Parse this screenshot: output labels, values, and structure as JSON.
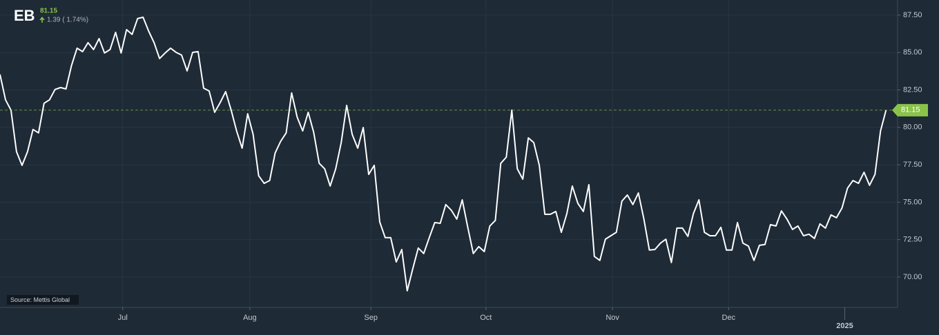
{
  "header": {
    "symbol": "EB",
    "price": "81.15",
    "change": "1.39 ( 1.74%)",
    "source": "Source: Mettis Global"
  },
  "chart_data": {
    "type": "line",
    "x": [
      0,
      1,
      2,
      3,
      4,
      5,
      6,
      7,
      8,
      9,
      10,
      11,
      12,
      13,
      14,
      15,
      16,
      17,
      18,
      19,
      20,
      21,
      22,
      23,
      24,
      25,
      26,
      27,
      28,
      29,
      30,
      31,
      32,
      33,
      34,
      35,
      36,
      37,
      38,
      39,
      40,
      41,
      42,
      43,
      44,
      45,
      46,
      47,
      48,
      49,
      50,
      51,
      52,
      53,
      54,
      55,
      56,
      57,
      58,
      59,
      60,
      61,
      62,
      63,
      64,
      65,
      66,
      67,
      68,
      69,
      70,
      71,
      72,
      73,
      74,
      75,
      76,
      77,
      78,
      79,
      80,
      81,
      82,
      83,
      84,
      85,
      86,
      87,
      88,
      89,
      90,
      91,
      92,
      93,
      94,
      95,
      96,
      97,
      98,
      99,
      100,
      101,
      102,
      103,
      104,
      105,
      106,
      107,
      108,
      109,
      110,
      111,
      112,
      113,
      114,
      115,
      116,
      117,
      118,
      119,
      120,
      121,
      122,
      123,
      124,
      125,
      126,
      127,
      128,
      129,
      130,
      131,
      132,
      133,
      134,
      135,
      136,
      137,
      138,
      139,
      140,
      141,
      142,
      143,
      144,
      145,
      146,
      147,
      148,
      149,
      150,
      151,
      152,
      153,
      154,
      155,
      156,
      157,
      158,
      159,
      160,
      161
    ],
    "series": [
      {
        "name": "EB",
        "color": "#ffffff",
        "values": [
          83.54,
          81.84,
          81.15,
          78.38,
          77.46,
          78.38,
          79.86,
          79.63,
          81.61,
          81.84,
          82.53,
          82.66,
          82.57,
          84.14,
          85.29,
          85.06,
          85.66,
          85.2,
          85.93,
          84.97,
          85.2,
          86.35,
          84.97,
          86.53,
          86.21,
          87.27,
          87.36,
          86.44,
          85.66,
          84.6,
          84.97,
          85.29,
          85.01,
          84.83,
          83.77,
          85.01,
          85.06,
          82.62,
          82.43,
          81.01,
          81.65,
          82.39,
          81.15,
          79.76,
          78.61,
          80.91,
          79.53,
          76.77,
          76.26,
          76.45,
          78.29,
          79.07,
          79.63,
          82.3,
          80.68,
          79.76,
          81.01,
          79.67,
          77.6,
          77.23,
          76.08,
          77.23,
          78.98,
          81.47,
          79.53,
          78.61,
          79.99,
          76.86,
          77.46,
          73.68,
          72.63,
          72.63,
          71.01,
          71.84,
          69.08,
          70.55,
          71.94,
          71.57,
          72.63,
          73.64,
          73.59,
          74.84,
          74.47,
          73.87,
          75.16,
          73.32,
          71.57,
          72.03,
          71.7,
          73.41,
          73.78,
          77.6,
          78.01,
          81.15,
          77.23,
          76.54,
          79.3,
          78.98,
          77.46,
          74.19,
          74.19,
          74.38,
          72.99,
          74.24,
          76.08,
          74.93,
          74.38,
          76.17,
          71.38,
          71.11,
          72.53,
          72.76,
          72.99,
          75.07,
          75.48,
          74.84,
          75.62,
          73.87,
          71.8,
          71.84,
          72.26,
          72.53,
          70.97,
          73.27,
          73.27,
          72.72,
          74.24,
          75.16,
          72.99,
          72.76,
          72.76,
          73.32,
          71.8,
          71.8,
          73.64,
          72.26,
          72.07,
          71.11,
          72.12,
          72.17,
          73.5,
          73.41,
          74.42,
          73.87,
          73.18,
          73.41,
          72.76,
          72.86,
          72.58,
          73.55,
          73.27,
          74.15,
          73.96,
          74.61,
          75.94,
          76.45,
          76.26,
          77.0,
          76.13,
          76.86,
          79.76,
          81.15
        ]
      }
    ],
    "xlim": [
      0,
      163.1
    ],
    "xticks": [
      {
        "value": 22.3,
        "label": "Jul"
      },
      {
        "value": 45.4,
        "label": "Aug"
      },
      {
        "value": 67.4,
        "label": "Sep"
      },
      {
        "value": 88.3,
        "label": "Oct"
      },
      {
        "value": 111.3,
        "label": "Nov"
      },
      {
        "value": 132.4,
        "label": "Dec"
      }
    ],
    "year_ticks": [
      {
        "value": 153.5,
        "label": "2025"
      }
    ],
    "ylim": [
      67.97,
      88.51
    ],
    "yticks": [
      {
        "value": 70,
        "label": "70.00"
      },
      {
        "value": 72.5,
        "label": "72.50"
      },
      {
        "value": 75,
        "label": "75.00"
      },
      {
        "value": 77.5,
        "label": "77.50"
      },
      {
        "value": 80,
        "label": "80.00"
      },
      {
        "value": 82.5,
        "label": "82.50"
      },
      {
        "value": 85,
        "label": "85.00"
      },
      {
        "value": 87.5,
        "label": "87.50"
      }
    ],
    "grid": true,
    "last_value_color": "#8bc34a"
  }
}
